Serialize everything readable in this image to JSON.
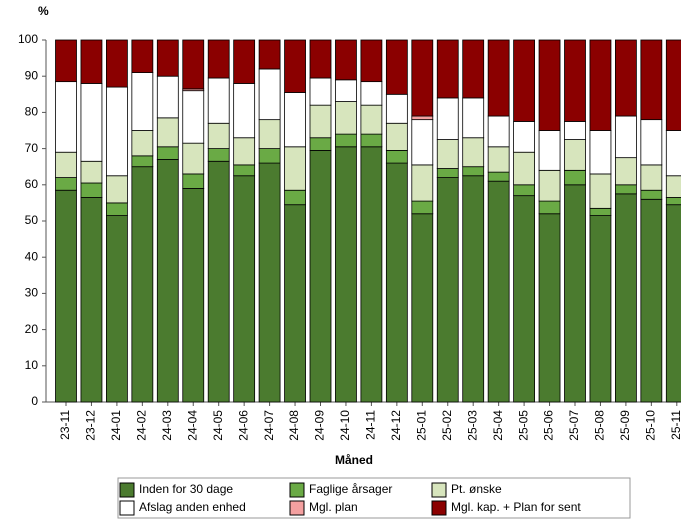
{
  "chart_data": {
    "type": "stacked_bar",
    "y_label": "%",
    "x_label": "Måned",
    "categories": [
      "23-11",
      "23-12",
      "24-01",
      "24-02",
      "24-03",
      "24-04",
      "24-05",
      "24-06",
      "24-07",
      "24-08",
      "24-09",
      "24-10",
      "24-11",
      "24-12",
      "25-01",
      "25-02",
      "25-03",
      "25-04",
      "25-05",
      "25-06",
      "25-07",
      "25-08",
      "25-09",
      "25-10",
      "25-11"
    ],
    "ylim": [
      0,
      100
    ],
    "yticks": [
      0,
      10,
      20,
      30,
      40,
      50,
      60,
      70,
      80,
      90,
      100
    ],
    "series": [
      {
        "name": "Inden for 30 dage",
        "color": "#4b7b2f",
        "values": [
          58.5,
          56.5,
          51.5,
          65,
          67,
          59,
          66.5,
          62.5,
          66,
          54.5,
          69.5,
          70.5,
          70.5,
          66,
          52,
          62,
          62.5,
          61,
          57,
          52,
          60,
          51.5,
          57.5,
          56,
          54.5
        ]
      },
      {
        "name": "Faglige årsager",
        "color": "#6aaa45",
        "values": [
          3.5,
          4,
          3.5,
          3,
          3.5,
          4,
          3.5,
          3,
          4,
          4,
          3.5,
          3.5,
          3.5,
          3.5,
          3.5,
          2.5,
          2.5,
          2.5,
          3,
          3.5,
          4,
          2,
          2.5,
          2.5,
          2
        ]
      },
      {
        "name": "Pt. ønske",
        "color": "#d7e5bd",
        "values": [
          7,
          6,
          7.5,
          7,
          8,
          8.5,
          7,
          7.5,
          8,
          12,
          9,
          9,
          8,
          7.5,
          10,
          8,
          8,
          7,
          9,
          8.5,
          8.5,
          9.5,
          7.5,
          7,
          6
        ]
      },
      {
        "name": "Afslag anden enhed",
        "color": "#ffffff",
        "values": [
          19.5,
          21.5,
          24.5,
          16,
          11.5,
          14.5,
          12.5,
          15,
          14,
          15,
          7.5,
          6,
          6.5,
          8,
          12.5,
          11.5,
          11,
          8.5,
          8.5,
          11,
          5,
          12,
          11.5,
          12.5,
          12.5
        ]
      },
      {
        "name": "Mgl. plan",
        "color": "#f4a0a0",
        "values": [
          0,
          0,
          0,
          0,
          0,
          0.5,
          0,
          0,
          0,
          0,
          0,
          0,
          0,
          0,
          1,
          0,
          0,
          0,
          0,
          0,
          0,
          0,
          0,
          0,
          0
        ]
      },
      {
        "name": "Mgl. kap. + Plan for sent",
        "color": "#8b0000",
        "values": [
          11.5,
          12,
          13,
          9,
          10,
          13.5,
          10.5,
          12,
          8,
          14.5,
          10.5,
          11,
          11.5,
          15,
          21,
          16,
          16,
          21,
          22.5,
          25,
          22.5,
          25,
          21,
          22,
          25
        ]
      }
    ]
  }
}
